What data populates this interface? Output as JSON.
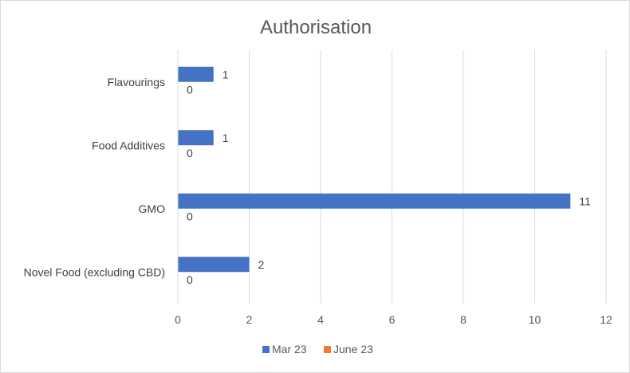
{
  "chart_data": {
    "type": "bar",
    "orientation": "horizontal",
    "title": "Authorisation",
    "categories": [
      "Flavourings",
      "Food Additives",
      "GMO",
      "Novel Food (excluding CBD)"
    ],
    "series": [
      {
        "name": "Mar 23",
        "values": [
          1,
          1,
          11,
          2
        ],
        "color": "#4472c4"
      },
      {
        "name": "June 23",
        "values": [
          0,
          0,
          0,
          0
        ],
        "color": "#ed7d31"
      }
    ],
    "xlim": [
      0,
      12
    ],
    "xticks": [
      "0",
      "2",
      "4",
      "6",
      "8",
      "10",
      "12"
    ],
    "grid": true,
    "legend": "bottom"
  }
}
